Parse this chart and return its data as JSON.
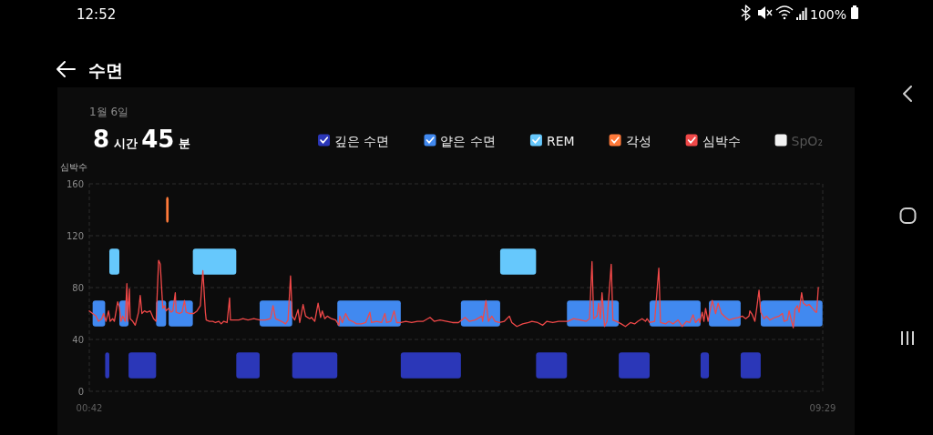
{
  "chart_data": {
    "type": "histogram",
    "title": "수면",
    "subtitle": "8 시간 45 분",
    "ylabel": "심박수",
    "annotations": [
      "12:52",
      "100%",
      "1월 6일"
    ],
    "xlim": [
      0.7,
      9.483
    ],
    "xticks": [
      {
        "value": 0.7,
        "label": "00:42"
      },
      {
        "value": 9.483,
        "label": "09:29"
      }
    ],
    "ylim": [
      0,
      160
    ],
    "yticks": [
      0,
      40,
      80,
      120,
      160
    ],
    "grid": true,
    "legend": "top right",
    "bins": [
      0.74,
      0.89,
      0.94,
      1.06,
      1.17,
      1.5,
      1.62,
      1.65,
      1.94,
      2.46,
      2.74,
      3.13,
      3.67,
      4.43,
      5.15,
      5.62,
      6.05,
      6.42,
      7.04,
      7.41,
      8.02,
      8.12,
      8.5,
      8.74,
      9.48
    ],
    "series": [
      {
        "name": "깊은 수면",
        "color": "#2b37b8",
        "values": [
          null,
          20,
          null,
          null,
          20,
          null,
          null,
          null,
          null,
          20,
          null,
          20,
          null,
          20,
          null,
          null,
          20,
          null,
          20,
          null,
          20,
          null,
          20,
          null
        ],
        "base": [
          null,
          10,
          null,
          null,
          10,
          null,
          null,
          null,
          null,
          10,
          null,
          10,
          null,
          10,
          null,
          null,
          10,
          null,
          10,
          null,
          10,
          null,
          10,
          null
        ]
      },
      {
        "name": "얕은 수면",
        "color": "#4189f0",
        "values": [
          20,
          null,
          null,
          20,
          null,
          20,
          null,
          20,
          null,
          null,
          20,
          null,
          20,
          null,
          20,
          null,
          null,
          20,
          null,
          20,
          null,
          20,
          null,
          20
        ],
        "base": [
          50,
          null,
          null,
          50,
          null,
          50,
          null,
          50,
          null,
          null,
          50,
          null,
          50,
          null,
          50,
          null,
          null,
          50,
          null,
          50,
          null,
          50,
          null,
          50
        ]
      },
      {
        "name": "REM",
        "color": "#66c8fc",
        "values": [
          null,
          null,
          20,
          null,
          null,
          null,
          null,
          null,
          20,
          null,
          null,
          null,
          null,
          null,
          null,
          20,
          null,
          null,
          null,
          null,
          null,
          null,
          null,
          null
        ],
        "base": [
          null,
          null,
          90,
          null,
          null,
          null,
          null,
          null,
          90,
          null,
          null,
          null,
          null,
          null,
          null,
          90,
          null,
          null,
          null,
          null,
          null,
          null,
          null,
          null
        ]
      },
      {
        "name": "각성",
        "color": "#ff7a3a",
        "values": [
          null,
          null,
          null,
          null,
          null,
          null,
          20,
          null,
          null,
          null,
          null,
          null,
          null,
          null,
          null,
          null,
          null,
          null,
          null,
          null,
          null,
          null,
          null,
          null
        ],
        "base": [
          null,
          null,
          null,
          null,
          null,
          null,
          130,
          null,
          null,
          null,
          null,
          null,
          null,
          null,
          null,
          null,
          null,
          null,
          null,
          null,
          null,
          null,
          null,
          null
        ]
      },
      {
        "name": "심박수",
        "type": "line",
        "color": "#f04848",
        "marker": "none",
        "line_style": "solid",
        "x": [
          0.7,
          0.74,
          0.78,
          0.81,
          0.85,
          0.87,
          0.9,
          0.93,
          0.95,
          0.98,
          1.0,
          1.04,
          1.06,
          1.08,
          1.1,
          1.13,
          1.15,
          1.16,
          1.18,
          1.19,
          1.22,
          1.25,
          1.29,
          1.31,
          1.33,
          1.36,
          1.39,
          1.43,
          1.47,
          1.5,
          1.53,
          1.55,
          1.58,
          1.6,
          1.62,
          1.65,
          1.68,
          1.7,
          1.73,
          1.74,
          1.78,
          1.81,
          1.84,
          1.86,
          1.9,
          1.95,
          1.99,
          2.03,
          2.06,
          2.09,
          2.1,
          2.14,
          2.18,
          2.21,
          2.25,
          2.28,
          2.31,
          2.35,
          2.38,
          2.39,
          2.43,
          2.49,
          2.54,
          2.6,
          2.67,
          2.74,
          2.81,
          2.87,
          2.9,
          2.93,
          3.0,
          3.05,
          3.08,
          3.11,
          3.13,
          3.16,
          3.2,
          3.22,
          3.26,
          3.29,
          3.34,
          3.36,
          3.4,
          3.44,
          3.47,
          3.49,
          3.52,
          3.55,
          3.6,
          3.65,
          3.69,
          3.7,
          3.73,
          3.77,
          3.81,
          3.85,
          3.9,
          3.96,
          4.01,
          4.06,
          4.08,
          4.14,
          4.2,
          4.24,
          4.26,
          4.31,
          4.35,
          4.38,
          4.43,
          4.49,
          4.56,
          4.63,
          4.7,
          4.78,
          4.83,
          4.9,
          4.98,
          5.05,
          5.12,
          5.2,
          5.25,
          5.32,
          5.4,
          5.41,
          5.45,
          5.48,
          5.52,
          5.56,
          5.61,
          5.67,
          5.73,
          5.76,
          5.82,
          5.89,
          5.96,
          6.0,
          6.07,
          6.13,
          6.18,
          6.25,
          6.32,
          6.43,
          6.5,
          6.58,
          6.65,
          6.69,
          6.72,
          6.74,
          6.78,
          6.8,
          6.82,
          6.84,
          6.87,
          6.9,
          6.95,
          6.97,
          7.01,
          7.07,
          7.12,
          7.18,
          7.23,
          7.27,
          7.32,
          7.36,
          7.38,
          7.41,
          7.47,
          7.52,
          7.54,
          7.6,
          7.64,
          7.69,
          7.75,
          7.8,
          7.85,
          7.89,
          7.93,
          7.96,
          8.0,
          8.01,
          8.04,
          8.06,
          8.08,
          8.11,
          8.13,
          8.16,
          8.2,
          8.23,
          8.27,
          8.32,
          8.36,
          8.41,
          8.47,
          8.52,
          8.56,
          8.6,
          8.61,
          8.64,
          8.67,
          8.69,
          8.72,
          8.74,
          8.78,
          8.81,
          8.85,
          8.91,
          8.96,
          9.0,
          9.02,
          9.06,
          9.08,
          9.11,
          9.13,
          9.15,
          9.18,
          9.2,
          9.23,
          9.25,
          9.29,
          9.32,
          9.36,
          9.4,
          9.41,
          9.43
        ],
        "values": [
          62,
          60,
          58,
          54,
          56,
          60,
          54,
          62,
          54,
          56,
          54,
          69,
          65,
          54,
          58,
          54,
          83,
          54,
          79,
          56,
          54,
          51,
          61,
          74,
          60,
          62,
          61,
          62,
          56,
          54,
          101,
          98,
          64,
          66,
          62,
          64,
          61,
          62,
          76,
          61,
          60,
          61,
          70,
          61,
          60,
          60,
          62,
          66,
          93,
          61,
          55,
          54,
          54,
          53,
          54,
          52,
          54,
          53,
          72,
          55,
          55,
          55,
          56,
          55,
          56,
          55,
          55,
          56,
          66,
          56,
          54,
          52,
          55,
          89,
          58,
          55,
          63,
          53,
          67,
          58,
          56,
          57,
          54,
          68,
          57,
          62,
          56,
          58,
          56,
          55,
          51,
          58,
          53,
          60,
          55,
          54,
          52,
          52,
          53,
          61,
          53,
          54,
          53,
          60,
          53,
          54,
          62,
          53,
          53,
          54,
          53,
          54,
          54,
          57,
          54,
          55,
          54,
          53,
          53,
          57,
          54,
          55,
          58,
          54,
          70,
          54,
          58,
          54,
          53,
          54,
          58,
          53,
          50,
          52,
          53,
          54,
          53,
          51,
          54,
          53,
          54,
          54,
          56,
          55,
          54,
          56,
          100,
          56,
          58,
          68,
          56,
          76,
          50,
          54,
          98,
          55,
          54,
          52,
          50,
          53,
          52,
          54,
          56,
          54,
          56,
          53,
          54,
          95,
          53,
          52,
          54,
          52,
          55,
          50,
          54,
          53,
          59,
          53,
          56,
          53,
          61,
          54,
          64,
          54,
          61,
          70,
          60,
          68,
          60,
          57,
          55,
          56,
          57,
          58,
          56,
          58,
          62,
          59,
          54,
          63,
          78,
          61,
          56,
          58,
          55,
          57,
          58,
          60,
          54,
          55,
          62,
          54,
          49,
          63,
          66,
          61,
          76,
          68,
          66,
          67,
          64,
          61,
          61,
          80
        ]
      },
      {
        "name": "SpO₂",
        "type": "line",
        "color": "#f2f2f2"
      }
    ]
  }
}
